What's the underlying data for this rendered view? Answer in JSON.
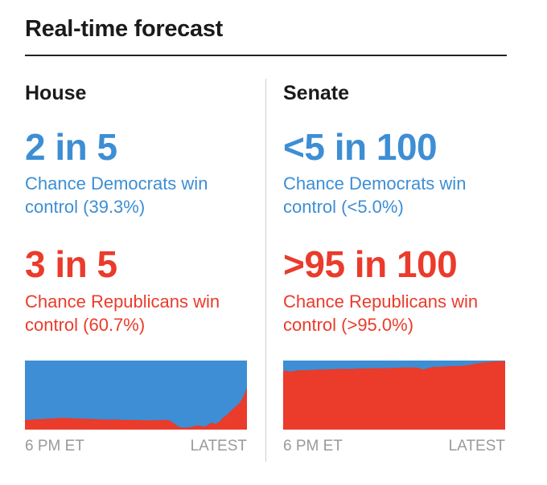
{
  "header": {
    "title": "Real-time forecast"
  },
  "house": {
    "heading": "House",
    "dem_odds": "2 in 5",
    "dem_label": "Chance Democrats win control (39.3%)",
    "rep_odds": "3 in 5",
    "rep_label": "Chance Republicans win control (60.7%)"
  },
  "senate": {
    "heading": "Senate",
    "dem_odds": "<5 in 100",
    "dem_label": "Chance Democrats win control (<5.0%)",
    "rep_odds": ">95 in 100",
    "rep_label": "Chance Republicans win control (>95.0%)"
  },
  "colors": {
    "democrat": "#3d8ed4",
    "republican": "#ea3b2b"
  },
  "chart_data": [
    {
      "type": "area",
      "title": "House",
      "xlabel_start": "6 PM ET",
      "xlabel_end": "LATEST",
      "ylim": [
        0,
        100
      ],
      "series": [
        {
          "name": "Republicans win control (%)",
          "values": [
            14,
            14,
            14.5,
            15,
            15,
            15.5,
            16,
            16,
            16.5,
            17,
            17,
            16.5,
            16.5,
            16,
            16,
            16,
            15.5,
            15.5,
            15,
            15,
            14.5,
            14.5,
            14.5,
            14.5,
            14.5,
            14,
            14,
            14,
            14,
            14,
            13.5,
            13.5,
            13.5,
            13.5,
            13.5,
            14,
            14,
            13.5,
            10,
            6,
            3,
            3,
            3,
            4,
            6,
            6,
            4,
            7,
            10,
            8,
            12,
            18,
            22,
            28,
            33,
            38,
            47,
            60.7
          ]
        }
      ]
    },
    {
      "type": "area",
      "title": "Senate",
      "xlabel_start": "6 PM ET",
      "xlabel_end": "LATEST",
      "ylim": [
        0,
        100
      ],
      "series": [
        {
          "name": "Republicans win control (%)",
          "values": [
            85,
            85,
            84,
            85,
            86,
            86,
            86,
            86.5,
            86.5,
            87,
            87,
            87,
            87.5,
            87.5,
            88,
            88,
            88,
            88,
            88,
            88.5,
            88.5,
            88.5,
            88.5,
            89,
            89,
            89,
            89,
            89,
            89.5,
            89.5,
            89.5,
            90,
            90,
            90,
            90,
            89,
            87,
            89,
            90,
            91,
            91,
            91,
            91.5,
            92,
            92,
            92,
            92.5,
            93,
            94,
            95,
            96,
            97,
            97.5,
            98,
            98.5,
            99,
            99,
            99
          ]
        }
      ]
    }
  ]
}
